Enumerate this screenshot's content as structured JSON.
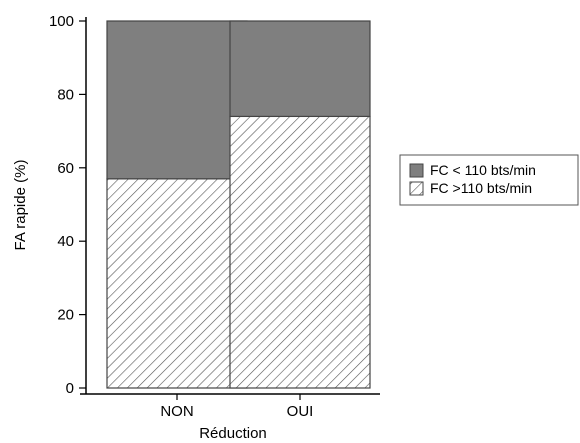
{
  "chart_data": {
    "type": "bar",
    "stacked": true,
    "categories": [
      "NON",
      "OUI"
    ],
    "series": [
      {
        "name": "FC >110 bts/min",
        "values": [
          57,
          74
        ],
        "color": "#ffffff",
        "pattern": "diagonal-hatch"
      },
      {
        "name": "FC < 110 bts/min",
        "values": [
          43,
          26
        ],
        "color": "#7f7f7f",
        "pattern": "solid"
      }
    ],
    "legend_order": [
      "FC < 110 bts/min",
      "FC >110 bts/min"
    ],
    "xlabel": "Réduction",
    "ylabel": "FA rapide (%)",
    "ylim": [
      0,
      100
    ],
    "yticks": [
      0,
      20,
      40,
      60,
      80,
      100
    ],
    "grid": false,
    "legend_position": "right"
  }
}
